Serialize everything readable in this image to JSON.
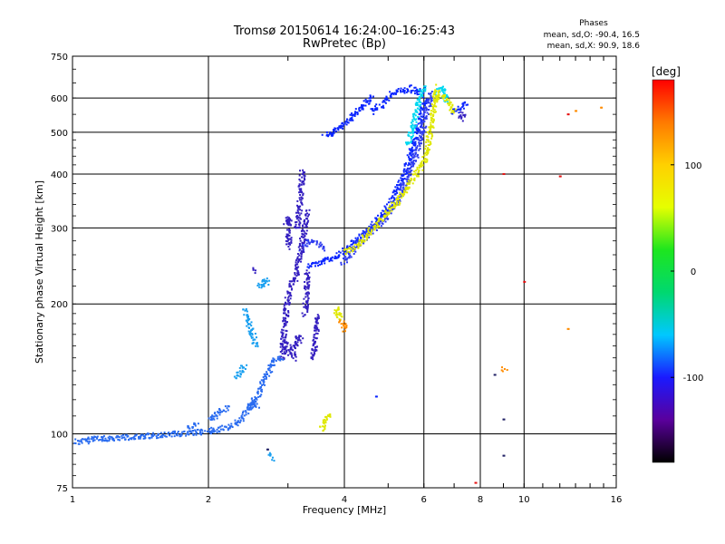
{
  "chart_data": {
    "type": "scatter",
    "title": "Tromsø 20150614 16:24:00–16:25:43",
    "subtitle": "RwPretec (Bp)",
    "xlabel": "Frequency [MHz]",
    "ylabel": "Stationary phase Virtual Height [km]",
    "x_scale": "log",
    "y_scale": "log",
    "xlim": [
      1,
      16
    ],
    "ylim": [
      75,
      750
    ],
    "x_ticks": [
      1,
      2,
      4,
      6,
      8,
      10,
      16
    ],
    "y_ticks": [
      75,
      100,
      200,
      300,
      400,
      500,
      600,
      750
    ],
    "grid": true,
    "phase_stats": {
      "title": "Phases",
      "line_o": "mean, sd,O: -90.4, 16.5",
      "line_x": "mean, sd,X:  90.9, 18.6"
    },
    "colorbar": {
      "label": "[deg]",
      "range": [
        -180,
        180
      ],
      "ticks": [
        100,
        0,
        -100
      ],
      "colors": [
        "#000000",
        "#5a009c",
        "#1a1aff",
        "#00c8ff",
        "#00d870",
        "#1ee61e",
        "#e6ff00",
        "#ffd000",
        "#ff7a00",
        "#ff0000"
      ]
    },
    "series": [
      {
        "color": "#0a25ff",
        "segments": [
          [
            [
              3.3,
              247
            ],
            [
              3.5,
              250
            ],
            [
              3.8,
              258
            ],
            [
              4.0,
              268
            ],
            [
              4.2,
              280
            ],
            [
              4.5,
              300
            ],
            [
              4.8,
              320
            ],
            [
              5.0,
              340
            ],
            [
              5.3,
              380
            ],
            [
              5.6,
              450
            ],
            [
              5.8,
              520
            ],
            [
              6.0,
              600
            ]
          ],
          [
            [
              3.6,
              490
            ],
            [
              3.8,
              505
            ],
            [
              4.0,
              525
            ],
            [
              4.2,
              550
            ],
            [
              4.4,
              580
            ],
            [
              4.6,
              610
            ]
          ],
          [
            [
              4.6,
              560
            ],
            [
              4.8,
              580
            ],
            [
              5.0,
              610
            ],
            [
              5.3,
              630
            ],
            [
              5.6,
              625
            ]
          ],
          [
            [
              5.6,
              640
            ],
            [
              5.8,
              620
            ],
            [
              6.0,
              630
            ]
          ],
          [
            [
              6.9,
              560
            ],
            [
              7.2,
              570
            ],
            [
              7.4,
              590
            ]
          ],
          [
            [
              4.7,
              122
            ]
          ]
        ]
      },
      {
        "color": "#2f3cf0",
        "segments": [
          [
            [
              3.95,
              250
            ],
            [
              4.1,
              262
            ],
            [
              4.3,
              278
            ],
            [
              4.6,
              298
            ],
            [
              4.9,
              318
            ],
            [
              5.2,
              345
            ],
            [
              5.5,
              395
            ],
            [
              5.8,
              460
            ],
            [
              6.0,
              540
            ],
            [
              6.2,
              620
            ]
          ],
          [
            [
              3.2,
              270
            ],
            [
              3.3,
              280
            ],
            [
              3.45,
              280
            ],
            [
              3.6,
              270
            ]
          ]
        ]
      },
      {
        "color": "#3520c0",
        "segments": [
          [
            [
              2.9,
              160
            ],
            [
              2.92,
              170
            ],
            [
              2.95,
              185
            ],
            [
              2.97,
              200
            ],
            [
              3.0,
              210
            ],
            [
              3.05,
              225
            ],
            [
              3.1,
              230
            ],
            [
              3.15,
              250
            ],
            [
              3.2,
              270
            ],
            [
              3.25,
              300
            ],
            [
              3.3,
              330
            ]
          ],
          [
            [
              2.9,
              150
            ],
            [
              2.92,
              155
            ],
            [
              2.95,
              165
            ]
          ],
          [
            [
              3.0,
              155
            ],
            [
              3.05,
              160
            ],
            [
              3.08,
              150
            ]
          ],
          [
            [
              3.1,
              160
            ],
            [
              3.15,
              170
            ],
            [
              3.2,
              165
            ]
          ],
          [
            [
              3.25,
              190
            ],
            [
              3.28,
              210
            ],
            [
              3.3,
              240
            ]
          ],
          [
            [
              3.12,
              300
            ],
            [
              3.15,
              320
            ],
            [
              3.18,
              350
            ],
            [
              3.2,
              380
            ],
            [
              3.22,
              410
            ]
          ],
          [
            [
              2.95,
              310
            ],
            [
              3.0,
              320
            ],
            [
              3.0,
              270
            ]
          ],
          [
            [
              3.4,
              150
            ],
            [
              3.42,
              160
            ],
            [
              3.45,
              175
            ],
            [
              3.45,
              190
            ]
          ],
          [
            [
              2.5,
              240
            ],
            [
              2.55,
              238
            ]
          ],
          [
            [
              7.2,
              540
            ],
            [
              7.25,
              555
            ],
            [
              7.3,
              545
            ]
          ]
        ]
      },
      {
        "color": "#2a6cf0",
        "segments": [
          [
            [
              1.0,
              97
            ],
            [
              1.05,
              96
            ],
            [
              1.1,
              98
            ],
            [
              1.2,
              98
            ],
            [
              1.4,
              99
            ],
            [
              1.6,
              100
            ],
            [
              1.8,
              101
            ],
            [
              2.0,
              102
            ],
            [
              2.1,
              103
            ],
            [
              2.2,
              104
            ],
            [
              2.3,
              106
            ],
            [
              2.4,
              112
            ],
            [
              2.5,
              120
            ],
            [
              2.55,
              122
            ],
            [
              2.6,
              128
            ],
            [
              2.7,
              140
            ],
            [
              2.8,
              150
            ],
            [
              2.9,
              150
            ]
          ],
          [
            [
              1.8,
              104
            ],
            [
              1.9,
              106
            ]
          ],
          [
            [
              2.0,
              108
            ],
            [
              2.1,
              112
            ],
            [
              2.2,
              116
            ]
          ],
          [
            [
              2.45,
              115
            ],
            [
              2.5,
              118
            ],
            [
              2.55,
              116
            ]
          ]
        ]
      },
      {
        "color": "#1aa0f0",
        "segments": [
          [
            [
              2.4,
              195
            ],
            [
              2.45,
              180
            ],
            [
              2.5,
              170
            ],
            [
              2.52,
              165
            ],
            [
              2.55,
              160
            ]
          ],
          [
            [
              2.58,
              225
            ],
            [
              2.62,
              220
            ],
            [
              2.66,
              228
            ],
            [
              2.7,
              225
            ]
          ],
          [
            [
              2.3,
              135
            ],
            [
              2.35,
              140
            ],
            [
              2.4,
              145
            ]
          ],
          [
            [
              2.7,
              90
            ],
            [
              2.75,
              88
            ]
          ]
        ]
      },
      {
        "color": "#00d8f0",
        "segments": [
          [
            [
              5.5,
              470
            ],
            [
              5.6,
              500
            ],
            [
              5.7,
              540
            ],
            [
              5.8,
              580
            ],
            [
              5.9,
              620
            ],
            [
              6.0,
              640
            ]
          ],
          [
            [
              6.4,
              620
            ],
            [
              6.6,
              640
            ],
            [
              6.7,
              590
            ]
          ]
        ]
      },
      {
        "color": "#dfe800",
        "segments": [
          [
            [
              4.0,
              265
            ],
            [
              4.2,
              270
            ],
            [
              4.4,
              285
            ],
            [
              4.6,
              300
            ],
            [
              4.8,
              315
            ],
            [
              5.0,
              330
            ],
            [
              5.2,
              345
            ],
            [
              5.4,
              365
            ],
            [
              5.6,
              385
            ],
            [
              5.8,
              410
            ],
            [
              6.0,
              430
            ],
            [
              6.1,
              470
            ],
            [
              6.2,
              520
            ],
            [
              6.3,
              580
            ],
            [
              6.4,
              640
            ]
          ],
          [
            [
              6.3,
              600
            ],
            [
              6.5,
              610
            ],
            [
              6.7,
              600
            ],
            [
              7.0,
              560
            ]
          ],
          [
            [
              3.55,
              103
            ],
            [
              3.6,
              107
            ],
            [
              3.7,
              112
            ]
          ],
          [
            [
              3.8,
              190
            ],
            [
              3.85,
              195
            ],
            [
              3.9,
              185
            ]
          ]
        ]
      },
      {
        "color": "#ff8c00",
        "segments": [
          [
            [
              3.95,
              175
            ],
            [
              4.0,
              180
            ],
            [
              3.9,
              185
            ]
          ],
          [
            [
              9.0,
              142
            ],
            [
              9.1,
              140
            ]
          ],
          [
            [
              12.5,
              175
            ]
          ],
          [
            [
              13.0,
              560
            ]
          ],
          [
            [
              14.8,
              570
            ]
          ]
        ]
      },
      {
        "color": "#e61414",
        "segments": [
          [
            [
              9.0,
              400
            ]
          ],
          [
            [
              10.0,
              225
            ]
          ],
          [
            [
              12.0,
              395
            ]
          ],
          [
            [
              12.5,
              550
            ]
          ],
          [
            [
              7.8,
              77
            ]
          ]
        ]
      },
      {
        "color": "#222266",
        "segments": [
          [
            [
              8.6,
              137
            ]
          ],
          [
            [
              9.0,
              89
            ]
          ],
          [
            [
              9.0,
              108
            ]
          ],
          [
            [
              2.7,
              92
            ]
          ]
        ]
      }
    ]
  }
}
